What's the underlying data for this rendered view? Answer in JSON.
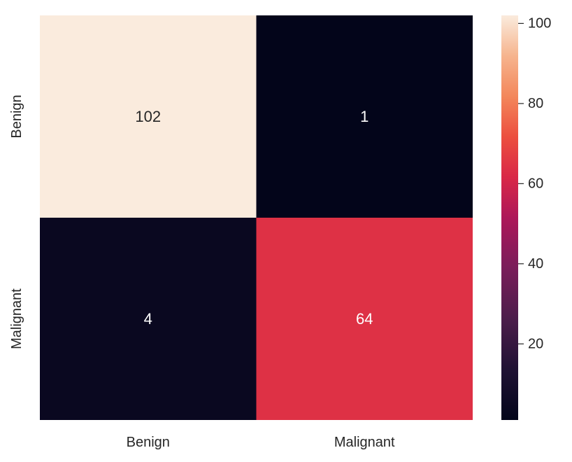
{
  "chart_data": {
    "type": "heatmap",
    "title": "",
    "xlabel": "",
    "ylabel": "",
    "x_categories": [
      "Benign",
      "Malignant"
    ],
    "y_categories": [
      "Benign",
      "Malignant"
    ],
    "values": [
      [
        102,
        1
      ],
      [
        4,
        64
      ]
    ],
    "cell_labels": [
      [
        "102",
        "1"
      ],
      [
        "4",
        "64"
      ]
    ],
    "colormap": "rocket",
    "vmin": 1,
    "vmax": 102,
    "colorbar": {
      "ticks": [
        20,
        40,
        60,
        80,
        100
      ],
      "tick_labels": [
        "20",
        "40",
        "60",
        "80",
        "100"
      ]
    },
    "grid": false
  },
  "colors": {
    "text_light": "#ffffff",
    "text_dark": "#262626",
    "tick": "#262626"
  }
}
